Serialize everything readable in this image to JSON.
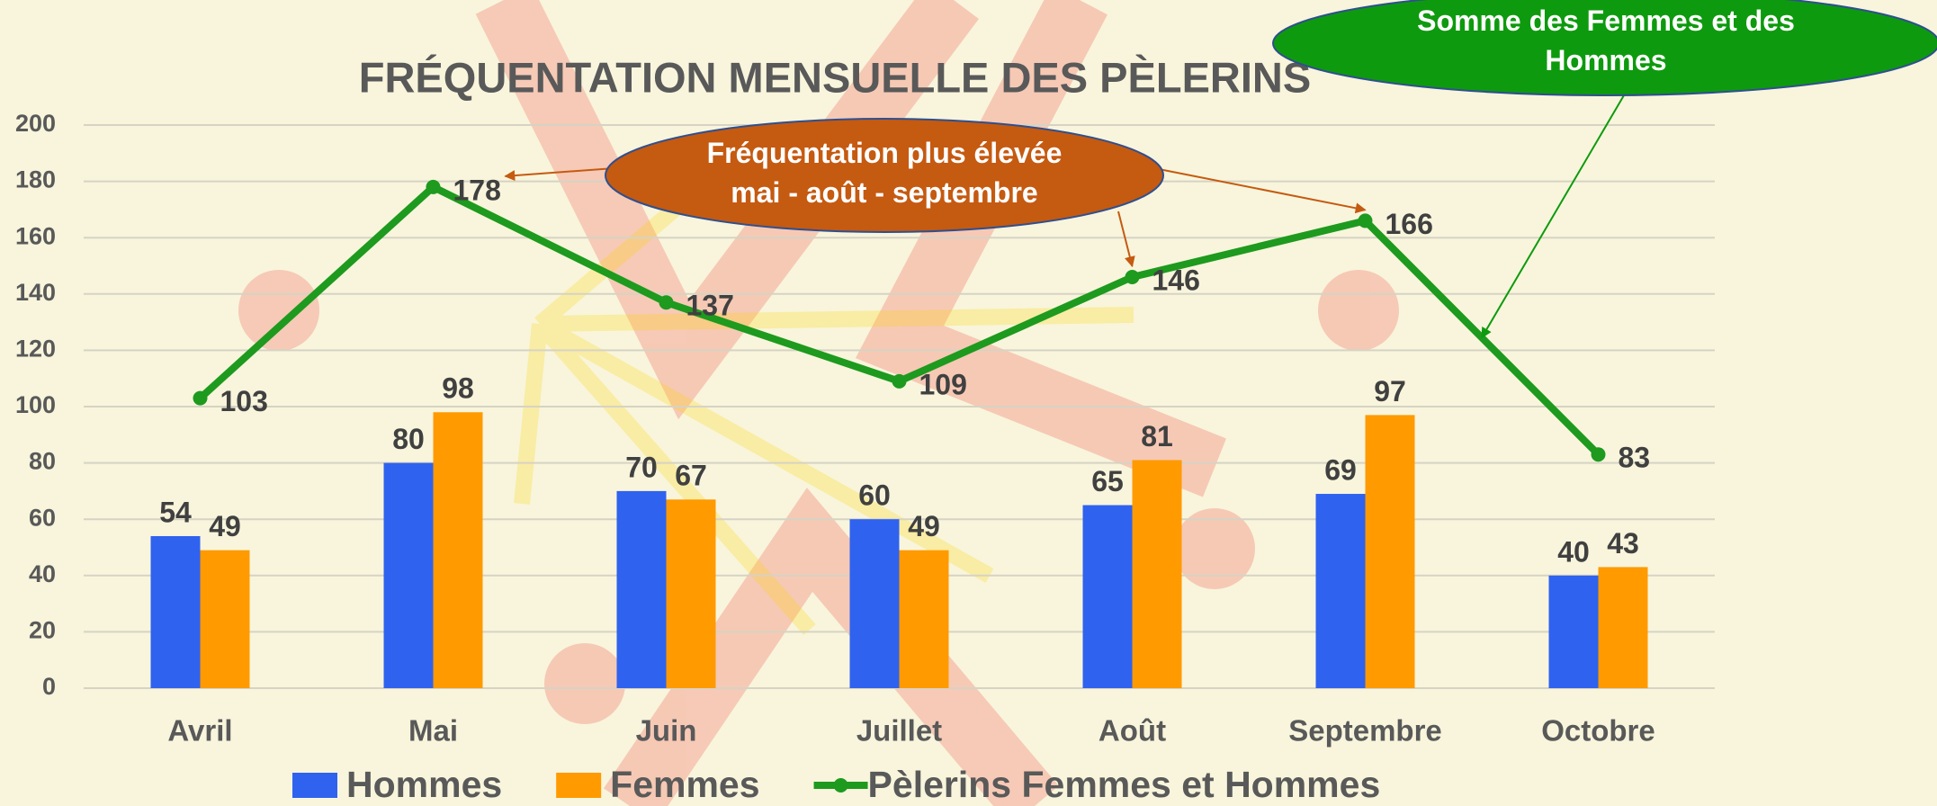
{
  "chart_data": {
    "type": "bar",
    "title": "FRÉQUENTATION MENSUELLE  DES PÈLERINS",
    "categories": [
      "Avril",
      "Mai",
      "Juin",
      "Juillet",
      "Août",
      "Septembre",
      "Octobre"
    ],
    "series": [
      {
        "name": "Hommes",
        "color": "#2f62ee",
        "values": [
          54,
          80,
          70,
          60,
          65,
          69,
          40
        ]
      },
      {
        "name": "Femmes",
        "color": "#ff9a00",
        "values": [
          49,
          98,
          67,
          49,
          81,
          97,
          43
        ]
      },
      {
        "name": "Pèlerins Femmes et Hommes",
        "type": "line",
        "color": "#1e9a1e",
        "values": [
          103,
          178,
          137,
          109,
          146,
          166,
          83
        ]
      }
    ],
    "ylim": [
      0,
      200
    ],
    "yticks": [
      0,
      20,
      40,
      60,
      80,
      100,
      120,
      140,
      160,
      180,
      200
    ],
    "grid": true,
    "legend": "bottom",
    "annotations": [
      {
        "text": "Fréquentation plus élevée\nmai - août - septembre",
        "color": "#c55a11"
      },
      {
        "text": "Somme des Femmes et des\nHommes",
        "color": "#0e9a0e"
      }
    ]
  }
}
